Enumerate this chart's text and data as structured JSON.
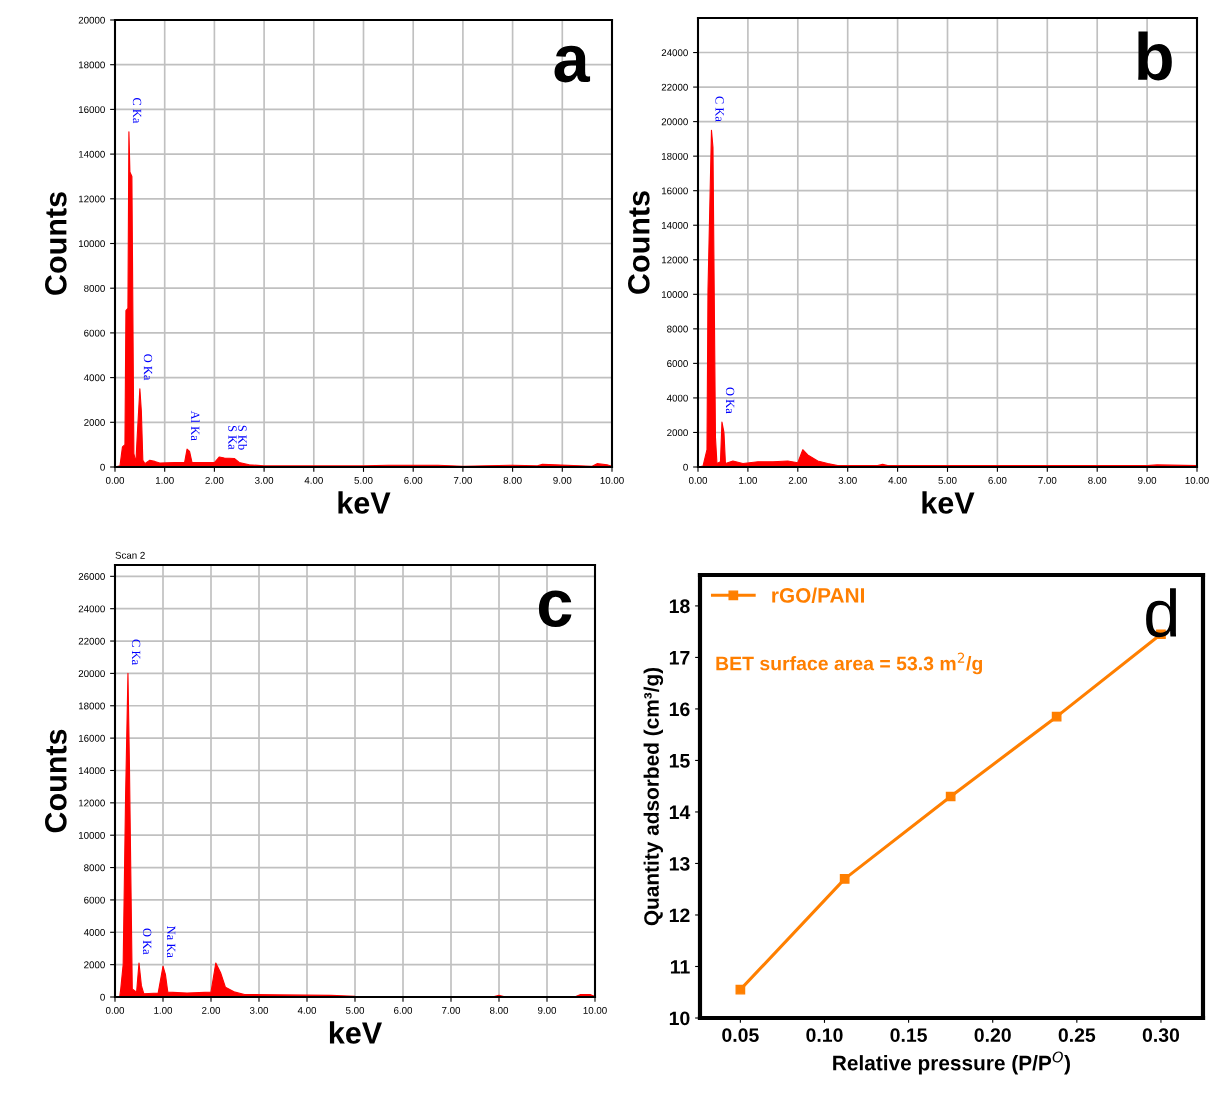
{
  "chart_data": [
    {
      "type": "area",
      "xlabel": "keV",
      "ylabel": "Counts",
      "grid": true,
      "xlim": [
        0,
        10
      ],
      "ylim": [
        0,
        20000
      ],
      "xticks": [
        {
          "value": 0,
          "label": "0.00"
        },
        {
          "value": 1,
          "label": "1.00"
        },
        {
          "value": 2,
          "label": "2.00"
        },
        {
          "value": 3,
          "label": "3.00"
        },
        {
          "value": 4,
          "label": "4.00"
        },
        {
          "value": 5,
          "label": "5.00"
        },
        {
          "value": 6,
          "label": "6.00"
        },
        {
          "value": 7,
          "label": "7.00"
        },
        {
          "value": 8,
          "label": "8.00"
        },
        {
          "value": 9,
          "label": "9.00"
        },
        {
          "value": 10,
          "label": "10.00"
        }
      ],
      "yticks": [
        0,
        2000,
        4000,
        6000,
        8000,
        10000,
        12000,
        14000,
        16000,
        18000,
        20000
      ],
      "series": [
        {
          "color": "#ff0000",
          "x": [
            0,
            0.1,
            0.15,
            0.2,
            0.22,
            0.26,
            0.28,
            0.3,
            0.34,
            0.38,
            0.42,
            0.45,
            0.5,
            0.53,
            0.56,
            0.6,
            0.7,
            0.8,
            0.9,
            1.2,
            1.4,
            1.45,
            1.5,
            1.55,
            2.0,
            2.1,
            2.2,
            2.4,
            2.5,
            2.7,
            3,
            5,
            5.5,
            6.5,
            7,
            8,
            8.5,
            8.6,
            9.6,
            9.7,
            9.9,
            10
          ],
          "values": [
            0,
            50,
            900,
            1000,
            7000,
            7100,
            15000,
            13200,
            13000,
            600,
            200,
            1500,
            3500,
            2500,
            300,
            150,
            300,
            250,
            180,
            200,
            200,
            800,
            700,
            200,
            200,
            450,
            400,
            380,
            200,
            100,
            50,
            50,
            80,
            80,
            30,
            80,
            50,
            120,
            30,
            150,
            100,
            30
          ]
        }
      ],
      "annotations": [
        "a",
        {
          "text": "C Ka",
          "x": 0.28,
          "y": 15000
        },
        {
          "text": "O Ka",
          "x": 0.5,
          "y": 3500
        },
        {
          "text": "Al Ka",
          "x": 1.45,
          "y": 800
        },
        {
          "text": "S Ka",
          "x": 2.2,
          "y": 400
        },
        {
          "text": "S Kb",
          "x": 2.4,
          "y": 380
        }
      ]
    },
    {
      "type": "area",
      "xlabel": "keV",
      "ylabel": "Counts",
      "grid": true,
      "xlim": [
        0,
        10
      ],
      "ylim": [
        0,
        26000
      ],
      "xticks": [
        {
          "value": 0,
          "label": "0.00"
        },
        {
          "value": 1,
          "label": "1.00"
        },
        {
          "value": 2,
          "label": "2.00"
        },
        {
          "value": 3,
          "label": "3.00"
        },
        {
          "value": 4,
          "label": "4.00"
        },
        {
          "value": 5,
          "label": "5.00"
        },
        {
          "value": 6,
          "label": "6.00"
        },
        {
          "value": 7,
          "label": "7.00"
        },
        {
          "value": 8,
          "label": "8.00"
        },
        {
          "value": 9,
          "label": "9.00"
        },
        {
          "value": 10,
          "label": "10.00"
        }
      ],
      "yticks": [
        0,
        2000,
        4000,
        6000,
        8000,
        10000,
        12000,
        14000,
        16000,
        18000,
        20000,
        22000,
        24000
      ],
      "series": [
        {
          "color": "#ff0000",
          "x": [
            0,
            0.1,
            0.18,
            0.2,
            0.27,
            0.3,
            0.35,
            0.38,
            0.45,
            0.48,
            0.52,
            0.55,
            0.7,
            0.9,
            1.2,
            1.5,
            1.8,
            2.0,
            2.1,
            2.2,
            2.4,
            2.6,
            2.8,
            3.6,
            3.7,
            3.8,
            9,
            9.2,
            10
          ],
          "values": [
            0,
            50,
            1000,
            10200,
            19500,
            18500,
            1700,
            200,
            300,
            2600,
            2000,
            200,
            350,
            200,
            300,
            300,
            350,
            250,
            1000,
            700,
            350,
            200,
            80,
            80,
            150,
            80,
            80,
            120,
            80
          ]
        }
      ],
      "annotations": [
        "b",
        {
          "text": "C Ka",
          "x": 0.27,
          "y": 19500
        },
        {
          "text": "O Ka",
          "x": 0.48,
          "y": 2600
        }
      ]
    },
    {
      "type": "area",
      "xlabel": "keV",
      "ylabel": "Counts",
      "grid": true,
      "xlim": [
        0,
        10
      ],
      "ylim": [
        0,
        26700
      ],
      "xticks": [
        {
          "value": 0,
          "label": "0.00"
        },
        {
          "value": 1,
          "label": "1.00"
        },
        {
          "value": 2,
          "label": "2.00"
        },
        {
          "value": 3,
          "label": "3.00"
        },
        {
          "value": 4,
          "label": "4.00"
        },
        {
          "value": 5,
          "label": "5.00"
        },
        {
          "value": 6,
          "label": "6.00"
        },
        {
          "value": 7,
          "label": "7.00"
        },
        {
          "value": 8,
          "label": "8.00"
        },
        {
          "value": 9,
          "label": "9.00"
        },
        {
          "value": 10,
          "label": "10.00"
        }
      ],
      "yticks": [
        0,
        2000,
        4000,
        6000,
        8000,
        10000,
        12000,
        14000,
        16000,
        18000,
        20000,
        22000,
        24000,
        26000
      ],
      "series": [
        {
          "color": "#ff0000",
          "x": [
            0,
            0.1,
            0.12,
            0.17,
            0.22,
            0.27,
            0.3,
            0.36,
            0.45,
            0.5,
            0.55,
            0.6,
            0.9,
            1.0,
            1.05,
            1.1,
            1.5,
            2.0,
            2.1,
            2.2,
            2.3,
            2.5,
            2.7,
            4.5,
            5,
            7,
            7.9,
            8,
            8.1,
            9.6,
            9.7,
            9.9,
            10
          ],
          "values": [
            0,
            50,
            500,
            2000,
            12300,
            20000,
            14500,
            500,
            300,
            2100,
            700,
            200,
            250,
            1900,
            1400,
            300,
            250,
            300,
            2100,
            1500,
            600,
            300,
            150,
            100,
            50,
            30,
            30,
            100,
            30,
            30,
            150,
            150,
            30
          ]
        }
      ],
      "annotations": [
        "c",
        "Scan 2",
        {
          "text": "C Ka",
          "x": 0.27,
          "y": 20000
        },
        {
          "text": "O Ka",
          "x": 0.5,
          "y": 2100
        },
        {
          "text": "Na Ka",
          "x": 1.0,
          "y": 1900
        }
      ]
    },
    {
      "type": "line",
      "xlabel": "Relative pressure (P/P$^{O}$)",
      "ylabel": "Quantity adsorbed (cm³/g)",
      "grid": false,
      "legend": "top left",
      "marker": "square",
      "xlim": [
        0.026,
        0.325
      ],
      "ylim": [
        10,
        18.6
      ],
      "xticks": [
        {
          "value": 0.05,
          "label": "0.05"
        },
        {
          "value": 0.1,
          "label": "0.10"
        },
        {
          "value": 0.15,
          "label": "0.15"
        },
        {
          "value": 0.2,
          "label": "0.20"
        },
        {
          "value": 0.25,
          "label": "0.25"
        },
        {
          "value": 0.3,
          "label": "0.30"
        }
      ],
      "yticks": [
        10,
        11,
        12,
        13,
        14,
        15,
        16,
        17,
        18
      ],
      "series": [
        {
          "name": "rGO/PANI",
          "color": "#ff7f00",
          "x": [
            0.05,
            0.112,
            0.175,
            0.238,
            0.3
          ],
          "values": [
            10.55,
            12.7,
            14.3,
            15.85,
            17.45
          ]
        }
      ],
      "annotations": [
        "d",
        "BET surface area = 53.3 m$^{2}$/g"
      ]
    }
  ]
}
